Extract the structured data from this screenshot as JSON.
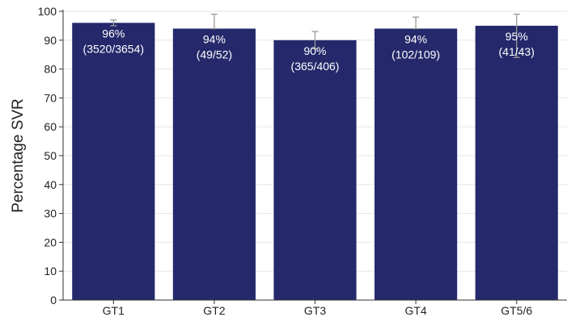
{
  "chart_data": {
    "type": "bar",
    "ylabel": "Percentage SVR",
    "xlabel": "",
    "ylim": [
      0,
      100
    ],
    "yticks": [
      0,
      10,
      20,
      30,
      40,
      50,
      60,
      70,
      80,
      90,
      100
    ],
    "grid": "horizontal",
    "categories": [
      "GT1",
      "GT2",
      "GT3",
      "GT4",
      "GT5/6"
    ],
    "values": [
      96,
      94,
      90,
      94,
      95
    ],
    "error_upper": [
      97,
      99,
      93,
      98,
      99
    ],
    "error_lower": [
      95,
      94,
      87,
      94,
      84
    ],
    "data_labels": [
      {
        "percent": "96%",
        "count": "(3520/3654)"
      },
      {
        "percent": "94%",
        "count": "(49/52)"
      },
      {
        "percent": "90%",
        "count": "(365/406)"
      },
      {
        "percent": "94%",
        "count": "(102/109)"
      },
      {
        "percent": "95%",
        "count": "(41/43)"
      }
    ],
    "colors": {
      "bar": "#25296b",
      "error": "#9a9a9a",
      "grid": "#e6e6e6",
      "axis": "#333333",
      "label": "#ffffff"
    }
  }
}
